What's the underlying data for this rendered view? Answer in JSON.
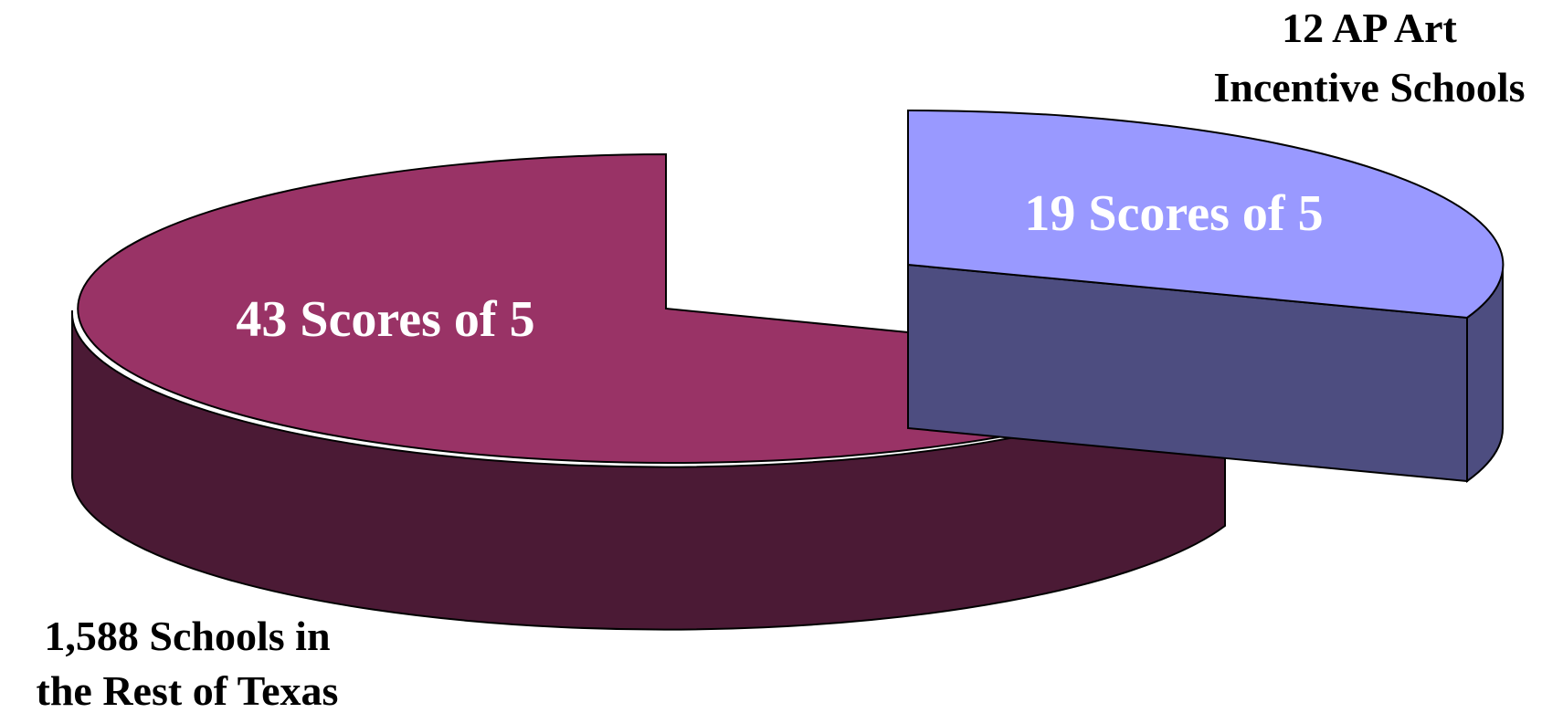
{
  "chart_data": {
    "type": "pie",
    "style": "3d-exploded",
    "slices": [
      {
        "category_lines": [
          "1,588 Schools in",
          "the Rest of Texas"
        ],
        "value": 43,
        "value_label": "43 Scores of 5",
        "top_color": "#993366",
        "side_color": "#4b1a35"
      },
      {
        "category_lines": [
          "12 AP Art",
          "Incentive Schools"
        ],
        "value": 19,
        "value_label": "19 Scores of 5",
        "top_color": "#9999ff",
        "side_color": "#4d4d80"
      }
    ],
    "legend": "none"
  }
}
